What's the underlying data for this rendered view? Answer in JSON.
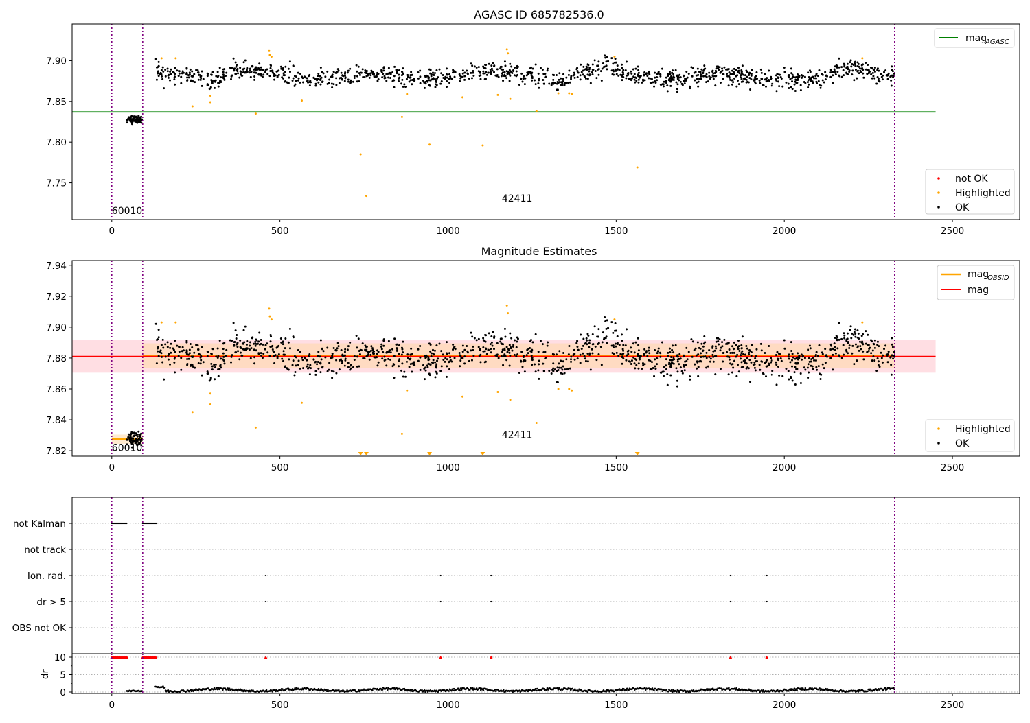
{
  "chart_data": [
    {
      "type": "scatter",
      "title": "AGASC ID 685782536.0",
      "xlim": [
        -118,
        2700
      ],
      "ylim": [
        7.705,
        7.945
      ],
      "xticks": [
        "0",
        "500",
        "1000",
        "1500",
        "2000",
        "2500"
      ],
      "yticks": [
        "7.75",
        "7.80",
        "7.85",
        "7.90"
      ],
      "obs_boundaries": [
        0,
        92,
        2328
      ],
      "obs_labels": [
        {
          "text": "60010",
          "x": 0,
          "y": 7.716
        },
        {
          "text": "42411",
          "x": 1160,
          "y": 7.731
        }
      ],
      "lines": [
        {
          "name": "mag_AGASC",
          "label": "mag",
          "sub": "AGASC",
          "y": 7.837,
          "x0": -118,
          "x1": 2450,
          "color": "#008000"
        }
      ],
      "series": [
        {
          "name": "not OK",
          "color": "#ff0000",
          "points": []
        },
        {
          "name": "Highlighted",
          "color": "#ffa500",
          "points": [
            [
              148,
              7.903
            ],
            [
              190,
              7.903
            ],
            [
              240,
              7.844
            ],
            [
              293,
              7.857
            ],
            [
              293,
              7.849
            ],
            [
              428,
              7.835
            ],
            [
              468,
              7.912
            ],
            [
              470,
              7.907
            ],
            [
              475,
              7.905
            ],
            [
              565,
              7.851
            ],
            [
              740,
              7.785
            ],
            [
              757,
              7.734
            ],
            [
              863,
              7.831
            ],
            [
              878,
              7.859
            ],
            [
              945,
              7.797
            ],
            [
              1043,
              7.855
            ],
            [
              1103,
              7.796
            ],
            [
              1148,
              7.858
            ],
            [
              1175,
              7.914
            ],
            [
              1178,
              7.909
            ],
            [
              1185,
              7.853
            ],
            [
              1263,
              7.838
            ],
            [
              1328,
              7.86
            ],
            [
              1360,
              7.86
            ],
            [
              1368,
              7.859
            ],
            [
              1495,
              7.905
            ],
            [
              1563,
              7.769
            ],
            [
              2232,
              7.903
            ]
          ]
        },
        {
          "name": "OK",
          "color": "#000000",
          "cluster_1": {
            "x_range": [
              45,
              90
            ],
            "center": 7.828,
            "spread": 0.004
          },
          "cluster_2": {
            "x_range": [
              130,
              2328
            ],
            "center": 7.882,
            "spread": 0.008
          }
        }
      ],
      "legends": [
        {
          "position": "upper right",
          "items": [
            "mag_AGASC"
          ]
        },
        {
          "position": "lower right",
          "items": [
            "not OK",
            "Highlighted",
            "OK"
          ]
        }
      ]
    },
    {
      "type": "scatter",
      "title": "Magnitude Estimates",
      "xlim": [
        -118,
        2700
      ],
      "ylim": [
        7.8165,
        7.943
      ],
      "xticks": [
        "0",
        "500",
        "1000",
        "1500",
        "2000",
        "2500"
      ],
      "yticks": [
        "7.82",
        "7.84",
        "7.86",
        "7.88",
        "7.90",
        "7.92",
        "7.94"
      ],
      "obs_boundaries": [
        0,
        92,
        2328
      ],
      "obs_labels": [
        {
          "text": "60010",
          "x": 0,
          "y": 7.822
        },
        {
          "text": "42411",
          "x": 1160,
          "y": 7.8305
        }
      ],
      "bands": [
        {
          "x0": -118,
          "x1": 2450,
          "y0": 7.8705,
          "y1": 7.8915,
          "color": "#ffb6c1",
          "opacity": 0.45
        },
        {
          "x0": 92,
          "x1": 2328,
          "y0": 7.8735,
          "y1": 7.8895,
          "color": "#ffd8a8",
          "opacity": 0.55
        },
        {
          "x0": 0,
          "x1": 92,
          "y0": 7.8245,
          "y1": 7.8305,
          "color": "#ffd8a8",
          "opacity": 0.55
        }
      ],
      "lines": [
        {
          "name": "mag_OBSID",
          "label": "mag",
          "sub": "OBSID",
          "color": "#ffa500",
          "segments": [
            [
              0,
              92,
              7.8275
            ],
            [
              92,
              2328,
              7.8815
            ]
          ]
        },
        {
          "name": "mag",
          "label": "mag",
          "sub": "",
          "color": "#ff0000",
          "y": 7.881,
          "x0": -118,
          "x1": 2450
        }
      ],
      "series": [
        {
          "name": "Highlighted",
          "color": "#ffa500",
          "points": [
            [
              148,
              7.903
            ],
            [
              190,
              7.903
            ],
            [
              240,
              7.845
            ],
            [
              293,
              7.857
            ],
            [
              293,
              7.85
            ],
            [
              428,
              7.835
            ],
            [
              468,
              7.912
            ],
            [
              470,
              7.907
            ],
            [
              475,
              7.905
            ],
            [
              565,
              7.851
            ],
            [
              863,
              7.831
            ],
            [
              878,
              7.859
            ],
            [
              1043,
              7.855
            ],
            [
              1148,
              7.858
            ],
            [
              1175,
              7.914
            ],
            [
              1178,
              7.909
            ],
            [
              1185,
              7.853
            ],
            [
              1263,
              7.838
            ],
            [
              1328,
              7.86
            ],
            [
              1360,
              7.86
            ],
            [
              1368,
              7.859
            ],
            [
              1495,
              7.905
            ],
            [
              2232,
              7.903
            ]
          ]
        },
        {
          "name": "Highlighted (below axis)",
          "color": "#ffa500",
          "x": [
            740,
            757,
            945,
            1103,
            1563
          ]
        },
        {
          "name": "OK",
          "color": "#000000",
          "cluster_1": {
            "x_range": [
              45,
              90
            ],
            "center": 7.828,
            "spread": 0.004
          },
          "cluster_2": {
            "x_range": [
              130,
              2328
            ],
            "center": 7.882,
            "spread": 0.008
          }
        }
      ],
      "legends": [
        {
          "position": "upper right",
          "items": [
            "mag_OBSID",
            "mag"
          ]
        },
        {
          "position": "lower right",
          "items": [
            "Highlighted",
            "OK"
          ]
        }
      ]
    },
    {
      "type": "scatter",
      "title": "",
      "xlim": [
        -118,
        2700
      ],
      "categories": [
        "not Kalman",
        "not track",
        "Ion. rad.",
        "dr > 5",
        "OBS not OK"
      ],
      "obs_boundaries": [
        0,
        92,
        2328
      ],
      "flags": [
        {
          "category": "not Kalman",
          "x_ranges": [
            [
              0,
              45
            ],
            [
              92,
              133
            ]
          ],
          "x": []
        },
        {
          "category": "not track",
          "x_ranges": [],
          "x": []
        },
        {
          "category": "Ion. rad.",
          "x_ranges": [],
          "x": [
            458,
            978,
            1128,
            1840,
            1948
          ]
        },
        {
          "category": "dr > 5",
          "x_ranges": [],
          "x": [
            458,
            978,
            1128,
            1840,
            1948
          ]
        },
        {
          "category": "OBS not OK",
          "x_ranges": [],
          "x": []
        }
      ]
    },
    {
      "type": "scatter",
      "xlabel": "",
      "ylabel": "dr",
      "xlim": [
        -118,
        2700
      ],
      "ylim": [
        -0.5,
        11
      ],
      "xticks": [
        "0",
        "500",
        "1000",
        "1500",
        "2000",
        "2500"
      ],
      "yticks": [
        "0",
        "5",
        "10"
      ],
      "obs_boundaries": [
        0,
        92,
        2328
      ],
      "clipped_markers": {
        "y": 10,
        "color": "#ff0000",
        "x_ranges": [
          [
            0,
            45
          ],
          [
            92,
            133
          ]
        ],
        "x": [
          458,
          978,
          1128,
          1840,
          1948
        ]
      },
      "series": [
        {
          "name": "dr",
          "color": "#000000",
          "segments": [
            {
              "x_range": [
                45,
                90
              ],
              "level": 0.2
            },
            {
              "x_range": [
                130,
                2328
              ],
              "level": 0.6
            }
          ]
        }
      ]
    }
  ]
}
